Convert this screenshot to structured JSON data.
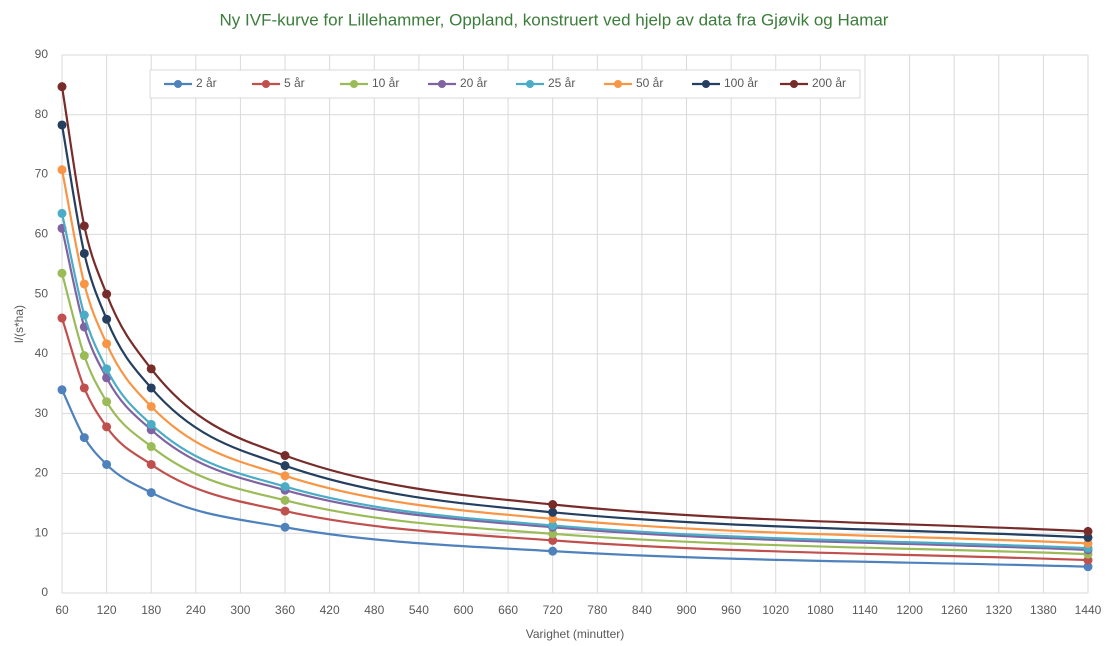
{
  "chart_data": {
    "type": "line",
    "title": "Ny IVF-kurve for Lillehammer, Oppland, konstruert ved hjelp av data fra Gjøvik og Hamar",
    "x_label": "Varighet (minutter)",
    "y_label": "l/(s*ha)",
    "x": [
      60,
      90,
      120,
      180,
      360,
      720,
      1440
    ],
    "series": [
      {
        "name": "2 år",
        "color": "#4f81bd",
        "values": [
          34,
          26,
          21.5,
          16.8,
          11,
          7,
          4.4
        ]
      },
      {
        "name": "5 år",
        "color": "#c0504d",
        "values": [
          46,
          34.3,
          27.8,
          21.5,
          13.7,
          8.8,
          5.5
        ]
      },
      {
        "name": "10 år",
        "color": "#9bbb59",
        "values": [
          53.5,
          39.7,
          32,
          24.5,
          15.5,
          9.9,
          6.5
        ]
      },
      {
        "name": "20 år",
        "color": "#8064a2",
        "values": [
          61,
          44.5,
          36,
          27.3,
          17.2,
          11,
          7.2
        ]
      },
      {
        "name": "25 år",
        "color": "#4bacc6",
        "values": [
          63.5,
          46.5,
          37.5,
          28.2,
          17.8,
          11.3,
          7.5
        ]
      },
      {
        "name": "50 år",
        "color": "#f79646",
        "values": [
          70.8,
          51.7,
          41.7,
          31.2,
          19.6,
          12.4,
          8.3
        ]
      },
      {
        "name": "100 år",
        "color": "#243f60",
        "values": [
          78.3,
          56.8,
          45.8,
          34.3,
          21.3,
          13.5,
          9.3
        ]
      },
      {
        "name": "200 år",
        "color": "#772c2a",
        "values": [
          84.7,
          61.4,
          50,
          37.5,
          23,
          14.8,
          10.3
        ]
      }
    ],
    "xlim": [
      60,
      1440
    ],
    "xticks": [
      60,
      120,
      180,
      240,
      300,
      360,
      420,
      480,
      540,
      600,
      660,
      720,
      780,
      840,
      900,
      960,
      1020,
      1080,
      1140,
      1200,
      1260,
      1320,
      1380,
      1440
    ],
    "ylim": [
      0,
      90
    ],
    "yticks": [
      0,
      10,
      20,
      30,
      40,
      50,
      60,
      70,
      80,
      90
    ],
    "grid": true,
    "legend": "top"
  }
}
